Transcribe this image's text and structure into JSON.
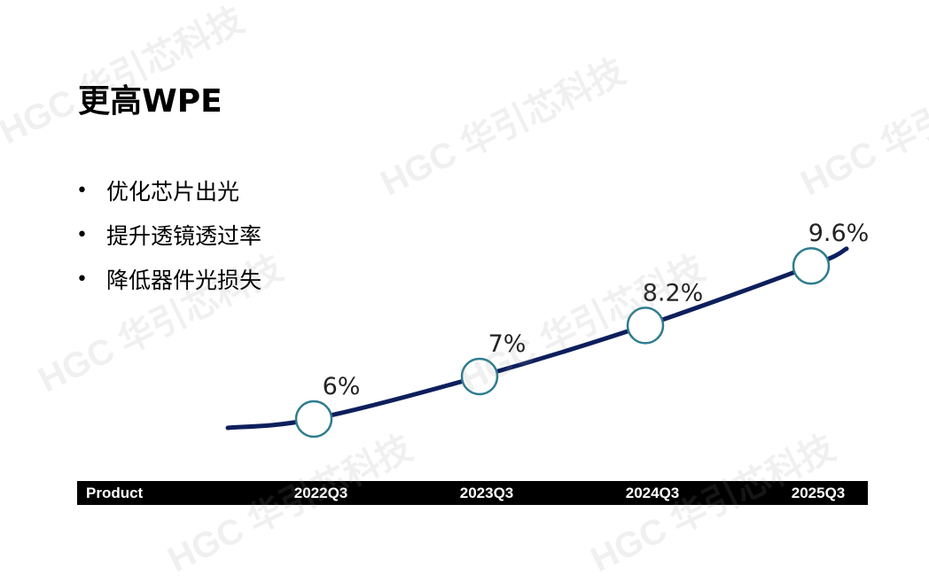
{
  "title": "更高WPE",
  "bullets": [
    "优化芯片出光",
    "提升透镜透过率",
    "降低器件光损失"
  ],
  "watermark": "HGC 华引芯科技",
  "axis": {
    "first_label": "Product"
  },
  "colors": {
    "line": "#0d1f5c",
    "marker_stroke": "#2e7d8f",
    "marker_fill": "#ffffff",
    "axis_bar": "#000000",
    "axis_text": "#ffffff"
  },
  "chart_data": {
    "type": "line",
    "categories": [
      "2022Q3",
      "2023Q3",
      "2024Q3",
      "2025Q3"
    ],
    "values": [
      6,
      7,
      8.2,
      9.6
    ],
    "data_labels": [
      "6%",
      "7%",
      "8.2%",
      "9.6%"
    ],
    "unit": "%",
    "title": "",
    "xlabel": "",
    "ylabel": "",
    "grid": false,
    "legend": "none"
  }
}
